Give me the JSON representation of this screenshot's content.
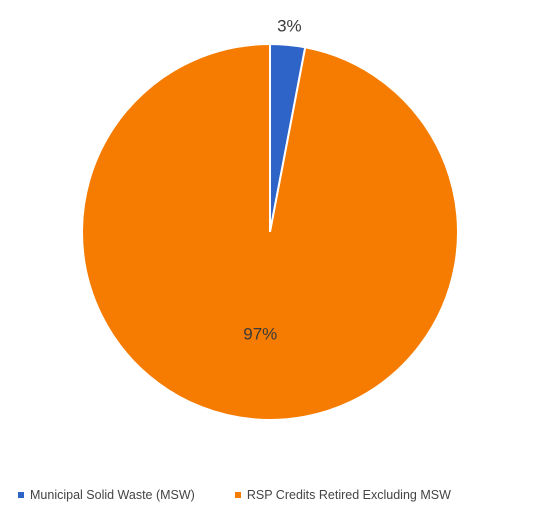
{
  "chart_data": {
    "type": "pie",
    "title": "",
    "start_angle_deg": 0,
    "direction": "clockwise",
    "slices": [
      {
        "name": "Municipal Solid Waste (MSW)",
        "value": 3,
        "label": "3%",
        "color": "#2e63c7"
      },
      {
        "name": "RSP Credits Retired Excluding MSW",
        "value": 97,
        "label": "97%",
        "color": "#f57c00"
      }
    ],
    "legend": {
      "placement": "bottom",
      "items": [
        {
          "label": "Municipal Solid Waste (MSW)",
          "color": "#2e63c7"
        },
        {
          "label": "RSP Credits Retired Excluding MSW",
          "color": "#f57c00"
        }
      ]
    }
  }
}
